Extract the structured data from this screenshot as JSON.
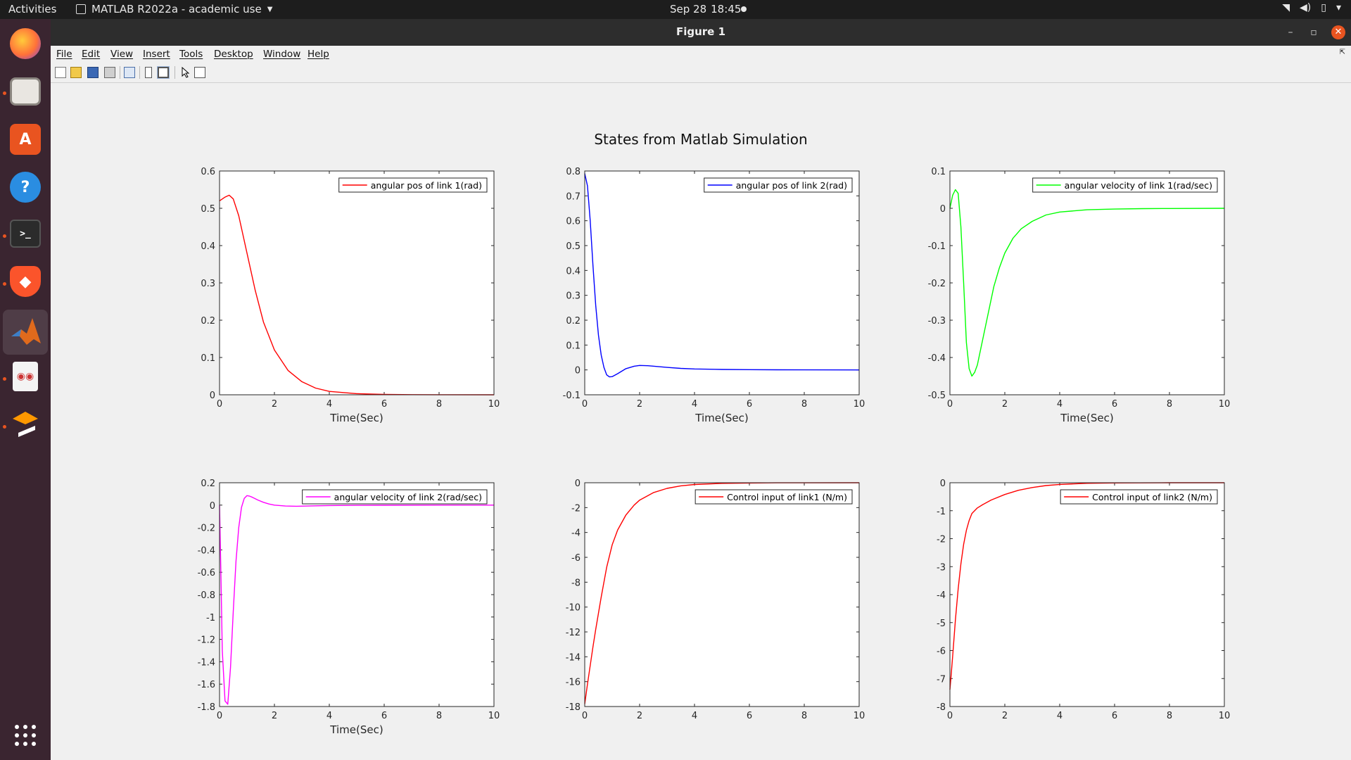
{
  "topbar": {
    "activities": "Activities",
    "app_name": "MATLAB R2022a - academic use",
    "date": "Sep 28",
    "time": "18:45",
    "tray_icons": [
      "wifi-icon",
      "volume-icon",
      "battery-icon",
      "chevron-down-icon"
    ]
  },
  "dock": {
    "items": [
      "firefox",
      "files",
      "app-center",
      "help",
      "terminal",
      "brave",
      "matlab",
      "document-viewer",
      "sublime-text",
      "show-apps"
    ]
  },
  "window": {
    "title": "Figure 1",
    "controls": {
      "minimize": "–",
      "maximize": "▫",
      "close": "✕"
    }
  },
  "menu": [
    "File",
    "Edit",
    "View",
    "Insert",
    "Tools",
    "Desktop",
    "Window",
    "Help"
  ],
  "toolbar_icons": [
    "new-figure-icon",
    "open-icon",
    "save-icon",
    "print-icon",
    "link-plot-icon",
    "hide-plot-tools-icon",
    "show-plot-tools-icon",
    "edit-plot-icon",
    "property-inspector-icon"
  ],
  "figure": {
    "sgtitle": "States from Matlab Simulation"
  },
  "chart_data": [
    {
      "type": "line",
      "legend": "angular pos of link 1(rad)",
      "color": "#ff0000",
      "xlabel": "Time(Sec)",
      "xlim": [
        0,
        10
      ],
      "ylim": [
        0,
        0.6
      ],
      "xticks": [
        0,
        2,
        4,
        6,
        8,
        10
      ],
      "yticks": [
        0,
        0.1,
        0.2,
        0.3,
        0.4,
        0.5,
        0.6
      ],
      "x": [
        0,
        0.2,
        0.35,
        0.5,
        0.7,
        1.0,
        1.3,
        1.6,
        2.0,
        2.5,
        3.0,
        3.5,
        4.0,
        5.0,
        6.0,
        7.0,
        8.0,
        10.0
      ],
      "y": [
        0.52,
        0.53,
        0.535,
        0.525,
        0.48,
        0.38,
        0.28,
        0.195,
        0.12,
        0.065,
        0.035,
        0.018,
        0.009,
        0.003,
        0.001,
        0.0004,
        0.0001,
        0
      ]
    },
    {
      "type": "line",
      "legend": "angular pos of link 2(rad)",
      "color": "#0000ff",
      "xlabel": "Time(Sec)",
      "xlim": [
        0,
        10
      ],
      "ylim": [
        -0.1,
        0.8
      ],
      "xticks": [
        0,
        2,
        4,
        6,
        8,
        10
      ],
      "yticks": [
        -0.1,
        0,
        0.1,
        0.2,
        0.3,
        0.4,
        0.5,
        0.6,
        0.7,
        0.8
      ],
      "x": [
        0,
        0.1,
        0.2,
        0.3,
        0.4,
        0.5,
        0.6,
        0.7,
        0.8,
        0.9,
        1.0,
        1.2,
        1.5,
        1.8,
        2.0,
        2.3,
        2.6,
        3.0,
        3.5,
        4.0,
        5.0,
        6.0,
        7.0,
        8.0,
        10.0
      ],
      "y": [
        0.79,
        0.74,
        0.6,
        0.42,
        0.26,
        0.14,
        0.06,
        0.01,
        -0.02,
        -0.028,
        -0.027,
        -0.015,
        0.005,
        0.015,
        0.018,
        0.017,
        0.014,
        0.01,
        0.006,
        0.004,
        0.002,
        0.001,
        0.0005,
        0.0002,
        0
      ]
    },
    {
      "type": "line",
      "legend": "angular velocity of link 1(rad/sec)",
      "color": "#00ff00",
      "xlabel": "Time(Sec)",
      "xlim": [
        0,
        10
      ],
      "ylim": [
        -0.5,
        0.1
      ],
      "xticks": [
        0,
        2,
        4,
        6,
        8,
        10
      ],
      "yticks": [
        -0.5,
        -0.4,
        -0.3,
        -0.2,
        -0.1,
        0,
        0.1
      ],
      "x": [
        0,
        0.1,
        0.2,
        0.3,
        0.4,
        0.5,
        0.6,
        0.7,
        0.8,
        0.9,
        1.0,
        1.2,
        1.4,
        1.6,
        1.8,
        2.0,
        2.3,
        2.6,
        3.0,
        3.5,
        4.0,
        5.0,
        6.0,
        7.0,
        8.0,
        10.0
      ],
      "y": [
        0.0,
        0.035,
        0.05,
        0.04,
        -0.05,
        -0.2,
        -0.36,
        -0.43,
        -0.45,
        -0.44,
        -0.42,
        -0.35,
        -0.28,
        -0.21,
        -0.16,
        -0.12,
        -0.08,
        -0.055,
        -0.035,
        -0.018,
        -0.01,
        -0.004,
        -0.002,
        -0.001,
        -0.0005,
        0
      ]
    },
    {
      "type": "line",
      "legend": "angular velocity of link 2(rad/sec)",
      "color": "#ff00ff",
      "xlabel": "Time(Sec)",
      "xlim": [
        0,
        10
      ],
      "ylim": [
        -1.8,
        0.2
      ],
      "xticks": [
        0,
        2,
        4,
        6,
        8,
        10
      ],
      "yticks": [
        -1.8,
        -1.6,
        -1.4,
        -1.2,
        -1,
        -0.8,
        -0.6,
        -0.4,
        -0.2,
        0,
        0.2
      ],
      "x": [
        0,
        0.05,
        0.1,
        0.2,
        0.3,
        0.4,
        0.5,
        0.6,
        0.7,
        0.8,
        0.9,
        1.0,
        1.1,
        1.2,
        1.4,
        1.6,
        1.8,
        2.0,
        2.4,
        2.8,
        3.5,
        4.0,
        5.0,
        6.0,
        8.0,
        10.0
      ],
      "y": [
        0,
        -0.6,
        -1.3,
        -1.75,
        -1.78,
        -1.45,
        -0.95,
        -0.5,
        -0.2,
        -0.02,
        0.06,
        0.085,
        0.08,
        0.07,
        0.045,
        0.025,
        0.01,
        0.0,
        -0.008,
        -0.01,
        -0.006,
        -0.004,
        -0.002,
        -0.001,
        0,
        0
      ]
    },
    {
      "type": "line",
      "legend": "Control input of link1 (N/m)",
      "color": "#ff0000",
      "xlabel": "",
      "xlim": [
        0,
        10
      ],
      "ylim": [
        -18,
        0
      ],
      "xticks": [
        0,
        2,
        4,
        6,
        8,
        10
      ],
      "yticks": [
        -18,
        -16,
        -14,
        -12,
        -10,
        -8,
        -6,
        -4,
        -2,
        0
      ],
      "x": [
        0,
        0.1,
        0.2,
        0.3,
        0.4,
        0.5,
        0.6,
        0.7,
        0.8,
        1.0,
        1.2,
        1.5,
        1.8,
        2.0,
        2.5,
        3.0,
        3.5,
        4.0,
        5.0,
        6.0,
        7.0,
        8.0,
        10.0
      ],
      "y": [
        -17.8,
        -16.2,
        -14.7,
        -13.2,
        -11.8,
        -10.5,
        -9.2,
        -8.0,
        -6.8,
        -5.0,
        -3.8,
        -2.6,
        -1.8,
        -1.4,
        -0.8,
        -0.45,
        -0.25,
        -0.14,
        -0.05,
        -0.02,
        -0.008,
        -0.003,
        0
      ]
    },
    {
      "type": "line",
      "legend": "Control input of link2 (N/m)",
      "color": "#ff0000",
      "xlabel": "",
      "xlim": [
        0,
        10
      ],
      "ylim": [
        -8,
        0
      ],
      "xticks": [
        0,
        2,
        4,
        6,
        8,
        10
      ],
      "yticks": [
        -8,
        -7,
        -6,
        -5,
        -4,
        -3,
        -2,
        -1,
        0
      ],
      "x": [
        0,
        0.05,
        0.1,
        0.2,
        0.3,
        0.4,
        0.5,
        0.6,
        0.7,
        0.8,
        1.0,
        1.2,
        1.5,
        2.0,
        2.5,
        3.0,
        3.5,
        4.0,
        5.0,
        6.0,
        8.0,
        10.0
      ],
      "y": [
        -7.4,
        -6.8,
        -6.2,
        -4.9,
        -3.8,
        -2.9,
        -2.2,
        -1.7,
        -1.35,
        -1.1,
        -0.9,
        -0.78,
        -0.62,
        -0.42,
        -0.27,
        -0.17,
        -0.1,
        -0.06,
        -0.02,
        -0.007,
        -0.001,
        0
      ]
    }
  ]
}
